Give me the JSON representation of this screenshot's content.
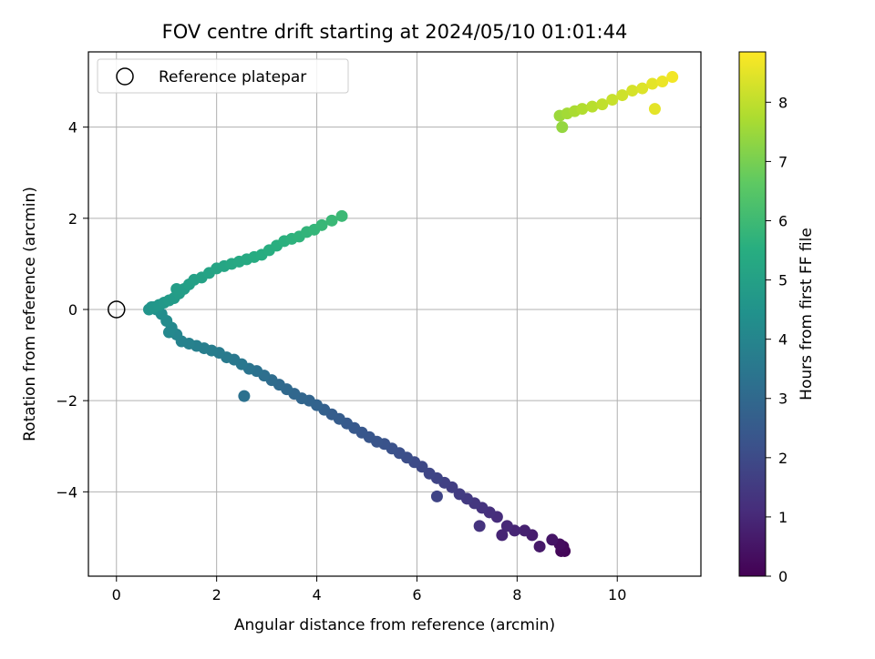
{
  "chart_data": {
    "type": "scatter",
    "title": "FOV centre drift starting at 2024/05/10 01:01:44",
    "xlabel": "Angular distance from reference (arcmin)",
    "ylabel": "Rotation from reference (arcmin)",
    "xlim": [
      -0.56,
      11.67
    ],
    "ylim": [
      -5.85,
      5.65
    ],
    "xticks": [
      0,
      2,
      4,
      6,
      8,
      10
    ],
    "yticks": [
      -4,
      -2,
      0,
      2,
      4
    ],
    "grid": true,
    "legend": {
      "placement": "top-left",
      "entries": [
        "Reference platepar"
      ]
    },
    "reference_point": {
      "x": 0,
      "y": 0
    },
    "colorbar": {
      "label": "Hours from first FF file",
      "range": [
        0,
        8.85
      ],
      "ticks": [
        0,
        1,
        2,
        3,
        4,
        5,
        6,
        7,
        8
      ],
      "colormap": "viridis"
    },
    "series": [
      {
        "x": [
          8.9,
          8.95,
          8.88,
          8.92,
          8.85,
          8.7,
          8.45,
          8.3,
          8.15,
          7.95,
          7.8,
          7.6,
          7.45,
          7.3,
          7.15,
          7.0,
          6.85,
          6.7,
          6.55,
          6.4,
          6.25,
          6.1,
          5.95,
          5.8,
          5.65,
          5.5,
          5.35,
          5.2,
          5.05,
          4.9,
          4.75,
          4.6,
          4.45,
          4.3,
          4.15,
          4.0,
          3.85,
          3.7,
          3.55,
          3.4,
          3.25,
          3.1,
          2.95,
          2.8,
          2.65,
          2.5,
          2.35,
          2.2,
          2.05,
          1.9,
          1.75,
          1.6,
          1.45,
          1.3,
          1.2,
          1.1,
          1.0,
          0.9,
          0.8,
          0.7,
          0.65,
          0.75,
          0.85,
          0.95,
          1.05,
          1.15,
          1.25,
          1.35,
          1.45,
          1.55,
          1.7,
          1.85,
          2.0,
          2.15,
          2.3,
          2.45,
          2.6,
          2.75,
          2.9,
          3.05,
          3.2,
          3.35,
          3.5,
          3.65,
          3.8,
          3.95,
          4.1,
          4.3,
          4.5,
          8.85,
          9.0,
          9.15,
          9.3,
          9.5,
          9.7,
          9.9,
          10.1,
          10.3,
          10.5,
          10.7,
          10.9,
          11.1,
          10.75,
          8.9,
          7.7,
          7.25,
          6.4,
          2.55,
          1.2,
          1.05
        ],
        "y": [
          -5.25,
          -5.3,
          -5.3,
          -5.2,
          -5.15,
          -5.05,
          -5.2,
          -4.95,
          -4.85,
          -4.85,
          -4.75,
          -4.55,
          -4.45,
          -4.35,
          -4.25,
          -4.15,
          -4.05,
          -3.9,
          -3.8,
          -3.7,
          -3.6,
          -3.45,
          -3.35,
          -3.25,
          -3.15,
          -3.05,
          -2.95,
          -2.9,
          -2.8,
          -2.7,
          -2.6,
          -2.5,
          -2.4,
          -2.3,
          -2.2,
          -2.1,
          -2.0,
          -1.95,
          -1.85,
          -1.75,
          -1.65,
          -1.55,
          -1.45,
          -1.35,
          -1.3,
          -1.2,
          -1.1,
          -1.05,
          -0.95,
          -0.9,
          -0.85,
          -0.8,
          -0.75,
          -0.7,
          -0.55,
          -0.4,
          -0.25,
          -0.1,
          0.0,
          0.05,
          0.0,
          0.05,
          0.1,
          0.15,
          0.2,
          0.25,
          0.35,
          0.45,
          0.55,
          0.65,
          0.7,
          0.8,
          0.9,
          0.95,
          1.0,
          1.05,
          1.1,
          1.15,
          1.2,
          1.3,
          1.4,
          1.5,
          1.55,
          1.6,
          1.7,
          1.75,
          1.85,
          1.95,
          2.05,
          4.25,
          4.3,
          4.35,
          4.4,
          4.45,
          4.5,
          4.6,
          4.7,
          4.8,
          4.85,
          4.95,
          5.0,
          5.1,
          4.4,
          4.0,
          -4.95,
          -4.75,
          -4.1,
          -1.9,
          0.45,
          -0.5
        ],
        "c": [
          0.05,
          0.1,
          0.15,
          0.2,
          0.3,
          0.5,
          0.6,
          0.7,
          0.8,
          0.9,
          1.0,
          1.1,
          1.2,
          1.3,
          1.4,
          1.5,
          1.55,
          1.6,
          1.7,
          1.8,
          1.85,
          1.9,
          2.0,
          2.1,
          2.15,
          2.2,
          2.25,
          2.3,
          2.35,
          2.4,
          2.45,
          2.5,
          2.55,
          2.6,
          2.7,
          2.8,
          2.85,
          2.9,
          2.95,
          3.0,
          3.05,
          3.1,
          3.2,
          3.3,
          3.4,
          3.5,
          3.55,
          3.6,
          3.65,
          3.7,
          3.75,
          3.8,
          3.85,
          3.9,
          4.0,
          4.1,
          4.2,
          4.3,
          4.4,
          4.5,
          4.55,
          4.6,
          4.65,
          4.7,
          4.75,
          4.8,
          4.85,
          4.9,
          4.95,
          5.0,
          5.05,
          5.1,
          5.15,
          5.2,
          5.25,
          5.3,
          5.35,
          5.4,
          5.45,
          5.5,
          5.55,
          5.6,
          5.65,
          5.7,
          5.75,
          5.8,
          5.85,
          5.9,
          5.95,
          7.5,
          7.6,
          7.7,
          7.8,
          7.9,
          8.0,
          8.1,
          8.2,
          8.3,
          8.4,
          8.5,
          8.6,
          8.7,
          8.5,
          7.4,
          0.9,
          1.3,
          1.8,
          3.3,
          4.9,
          4.1
        ]
      }
    ]
  }
}
